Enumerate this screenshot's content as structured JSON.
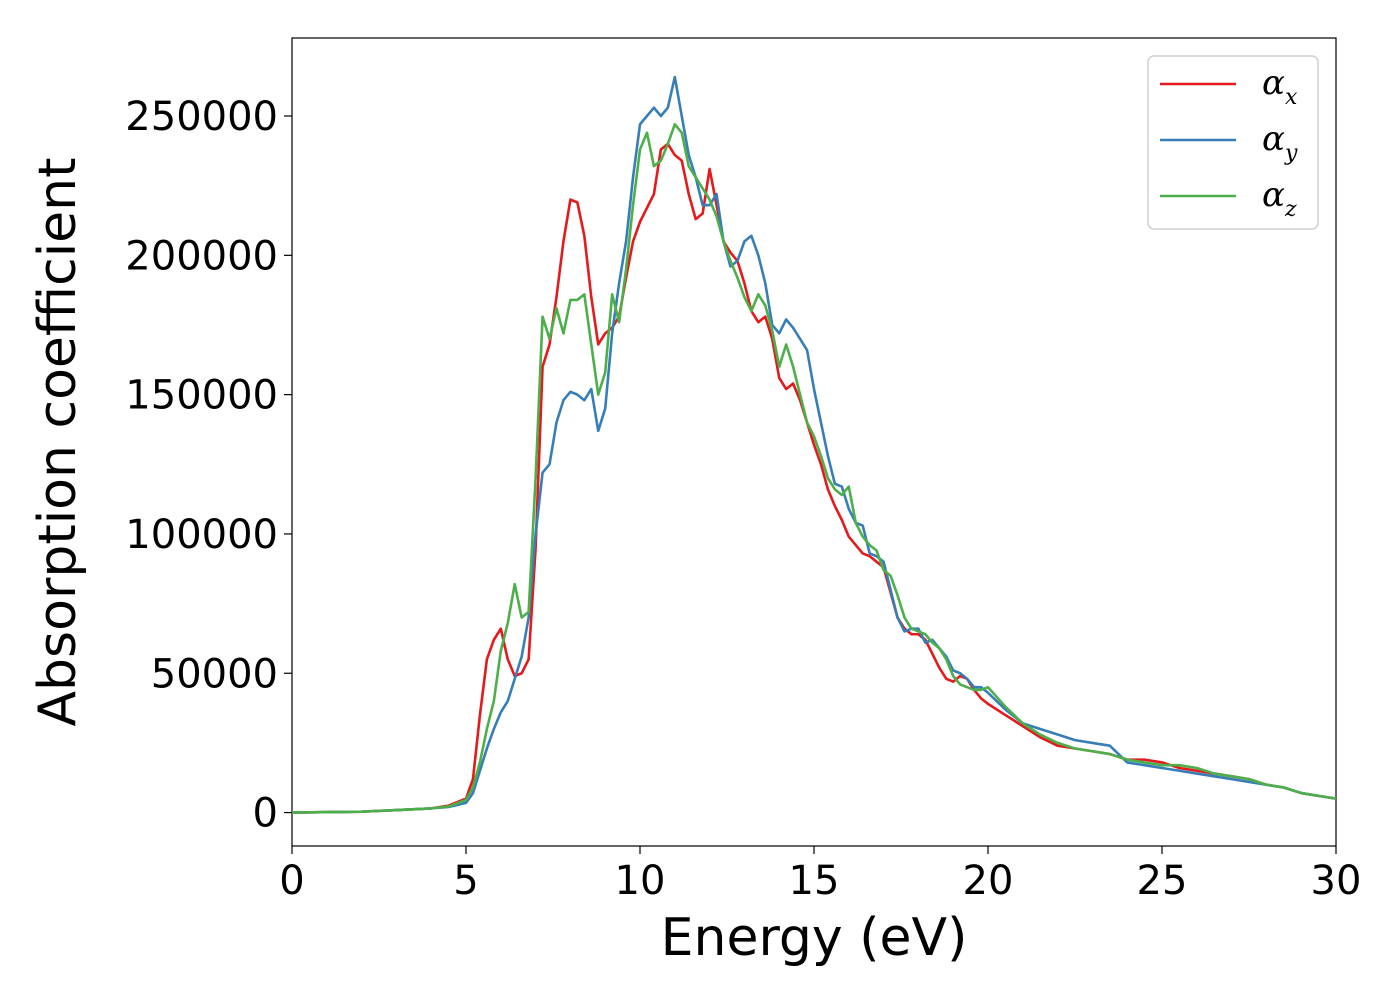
{
  "chart_data": {
    "type": "line",
    "xlabel": "Energy (eV)",
    "ylabel": "Absorption coefficient",
    "xlim": [
      0,
      30
    ],
    "ylim": [
      -12000,
      278000
    ],
    "xticks": [
      0,
      5,
      10,
      15,
      20,
      25,
      30
    ],
    "yticks": [
      0,
      50000,
      100000,
      150000,
      200000,
      250000
    ],
    "xtick_labels": [
      "0",
      "5",
      "10",
      "15",
      "20",
      "25",
      "30"
    ],
    "ytick_labels": [
      "0",
      "50000",
      "100000",
      "150000",
      "200000",
      "250000"
    ],
    "grid": false,
    "legend_position": "top-right",
    "series": [
      {
        "name": "α_x",
        "label_main": "α",
        "label_sub": "x",
        "color": "#e41a1c",
        "x": [
          0,
          2,
          4,
          4.5,
          5,
          5.2,
          5.4,
          5.6,
          5.8,
          6.0,
          6.2,
          6.4,
          6.6,
          6.8,
          7.0,
          7.2,
          7.4,
          7.6,
          7.8,
          8.0,
          8.2,
          8.4,
          8.6,
          8.8,
          9.0,
          9.2,
          9.4,
          9.6,
          9.8,
          10.0,
          10.2,
          10.4,
          10.6,
          10.8,
          11.0,
          11.2,
          11.4,
          11.6,
          11.8,
          12.0,
          12.2,
          12.4,
          12.6,
          12.8,
          13.0,
          13.2,
          13.4,
          13.6,
          13.8,
          14.0,
          14.2,
          14.4,
          14.6,
          14.8,
          15.0,
          15.2,
          15.4,
          15.6,
          15.8,
          16.0,
          16.2,
          16.4,
          16.6,
          16.8,
          17.0,
          17.2,
          17.4,
          17.6,
          17.8,
          18.0,
          18.2,
          18.4,
          18.6,
          18.8,
          19.0,
          19.2,
          19.4,
          19.6,
          19.8,
          20.0,
          20.5,
          21.0,
          21.5,
          22.0,
          22.5,
          23.0,
          23.5,
          24.0,
          24.5,
          25.0,
          25.5,
          26.0,
          26.5,
          27.0,
          27.5,
          28.0,
          28.5,
          29.0,
          29.5,
          30.0
        ],
        "y": [
          0,
          300,
          1500,
          2500,
          5000,
          12000,
          35000,
          55000,
          62000,
          66000,
          55000,
          49000,
          50000,
          55000,
          95000,
          160000,
          168000,
          185000,
          205000,
          220000,
          219000,
          207000,
          185000,
          168000,
          172000,
          174000,
          178000,
          192000,
          205000,
          212000,
          217000,
          222000,
          238000,
          240000,
          236000,
          234000,
          222000,
          213000,
          215000,
          231000,
          218000,
          205000,
          201000,
          198000,
          190000,
          180000,
          176000,
          178000,
          170000,
          156000,
          152000,
          154000,
          148000,
          140000,
          132000,
          125000,
          116000,
          110000,
          105000,
          99000,
          96000,
          93000,
          92000,
          90000,
          88000,
          79000,
          70000,
          66000,
          64000,
          64000,
          62000,
          57000,
          52000,
          48000,
          47000,
          49000,
          48000,
          44000,
          41000,
          39000,
          35000,
          31000,
          27000,
          24000,
          23000,
          22000,
          21000,
          19000,
          19000,
          18000,
          16000,
          15000,
          14000,
          13000,
          12000,
          10000,
          9000,
          7000,
          6000,
          5000
        ],
        "chart_note": ""
      },
      {
        "name": "α_y",
        "label_main": "α",
        "label_sub": "y",
        "color": "#377eb8",
        "x": [
          0,
          2,
          4,
          4.5,
          5,
          5.2,
          5.4,
          5.6,
          5.8,
          6.0,
          6.2,
          6.4,
          6.6,
          6.8,
          7.0,
          7.2,
          7.4,
          7.6,
          7.8,
          8.0,
          8.2,
          8.4,
          8.6,
          8.8,
          9.0,
          9.2,
          9.4,
          9.6,
          9.8,
          10.0,
          10.2,
          10.4,
          10.6,
          10.8,
          11.0,
          11.2,
          11.4,
          11.6,
          11.8,
          12.0,
          12.2,
          12.4,
          12.6,
          12.8,
          13.0,
          13.2,
          13.4,
          13.6,
          13.8,
          14.0,
          14.2,
          14.4,
          14.6,
          14.8,
          15.0,
          15.2,
          15.4,
          15.6,
          15.8,
          16.0,
          16.2,
          16.4,
          16.6,
          16.8,
          17.0,
          17.2,
          17.4,
          17.6,
          17.8,
          18.0,
          18.2,
          18.4,
          18.6,
          18.8,
          19.0,
          19.2,
          19.4,
          19.6,
          19.8,
          20.0,
          20.5,
          21.0,
          21.5,
          22.0,
          22.5,
          23.0,
          23.5,
          24.0,
          24.5,
          25.0,
          25.5,
          26.0,
          26.5,
          27.0,
          27.5,
          28.0,
          28.5,
          29.0,
          29.5,
          30.0
        ],
        "y": [
          0,
          300,
          1500,
          2000,
          3500,
          7000,
          15000,
          23000,
          30000,
          36000,
          40000,
          48000,
          56000,
          70000,
          100000,
          122000,
          125000,
          140000,
          148000,
          151000,
          150000,
          148000,
          152000,
          137000,
          145000,
          172000,
          190000,
          205000,
          228000,
          247000,
          250000,
          253000,
          250000,
          253000,
          264000,
          250000,
          236000,
          228000,
          218000,
          218000,
          222000,
          205000,
          196000,
          198000,
          205000,
          207000,
          200000,
          190000,
          175000,
          172000,
          177000,
          174000,
          170000,
          166000,
          152000,
          140000,
          128000,
          118000,
          117000,
          109000,
          104000,
          103000,
          93000,
          92000,
          90000,
          80000,
          70000,
          65000,
          66000,
          66000,
          61000,
          62000,
          59000,
          56000,
          51000,
          50000,
          48000,
          45000,
          45000,
          43000,
          37000,
          32000,
          30000,
          28000,
          26000,
          25000,
          24000,
          18000,
          17000,
          16000,
          15000,
          14000,
          13000,
          12000,
          11000,
          10000,
          9000,
          7000,
          6000,
          5000
        ],
        "chart_note": ""
      },
      {
        "name": "α_z",
        "label_main": "α",
        "label_sub": "z",
        "color": "#4daf4a",
        "x": [
          0,
          2,
          4,
          4.5,
          5,
          5.2,
          5.4,
          5.6,
          5.8,
          6.0,
          6.2,
          6.4,
          6.6,
          6.8,
          7.0,
          7.2,
          7.4,
          7.6,
          7.8,
          8.0,
          8.2,
          8.4,
          8.6,
          8.8,
          9.0,
          9.2,
          9.4,
          9.6,
          9.8,
          10.0,
          10.2,
          10.4,
          10.6,
          10.8,
          11.0,
          11.2,
          11.4,
          11.6,
          11.8,
          12.0,
          12.2,
          12.4,
          12.6,
          12.8,
          13.0,
          13.2,
          13.4,
          13.6,
          13.8,
          14.0,
          14.2,
          14.4,
          14.6,
          14.8,
          15.0,
          15.2,
          15.4,
          15.6,
          15.8,
          16.0,
          16.2,
          16.4,
          16.6,
          16.8,
          17.0,
          17.2,
          17.4,
          17.6,
          17.8,
          18.0,
          18.2,
          18.4,
          18.6,
          18.8,
          19.0,
          19.2,
          19.4,
          19.6,
          19.8,
          20.0,
          20.5,
          21.0,
          21.5,
          22.0,
          22.5,
          23.0,
          23.5,
          24.0,
          24.5,
          25.0,
          25.5,
          26.0,
          26.5,
          27.0,
          27.5,
          28.0,
          28.5,
          29.0,
          29.5,
          30.0
        ],
        "y": [
          0,
          300,
          1500,
          2200,
          4500,
          9000,
          18000,
          30000,
          40000,
          58000,
          68000,
          82000,
          70000,
          72000,
          120000,
          178000,
          170000,
          181000,
          172000,
          184000,
          184000,
          186000,
          168000,
          150000,
          158000,
          186000,
          176000,
          195000,
          218000,
          238000,
          244000,
          232000,
          234000,
          240000,
          247000,
          244000,
          232000,
          228000,
          224000,
          220000,
          214000,
          205000,
          198000,
          192000,
          185000,
          180000,
          186000,
          182000,
          173000,
          160000,
          168000,
          160000,
          150000,
          140000,
          135000,
          128000,
          120000,
          116000,
          114000,
          117000,
          104000,
          99000,
          96000,
          94000,
          87000,
          85000,
          78000,
          70000,
          66000,
          65000,
          64000,
          61000,
          59000,
          55000,
          49000,
          46000,
          45000,
          44000,
          44000,
          45000,
          38000,
          32000,
          28000,
          25000,
          23000,
          22000,
          21000,
          19000,
          18000,
          17000,
          17000,
          16000,
          14000,
          13000,
          12000,
          10000,
          9000,
          7000,
          6000,
          5000
        ],
        "chart_note": ""
      }
    ]
  }
}
